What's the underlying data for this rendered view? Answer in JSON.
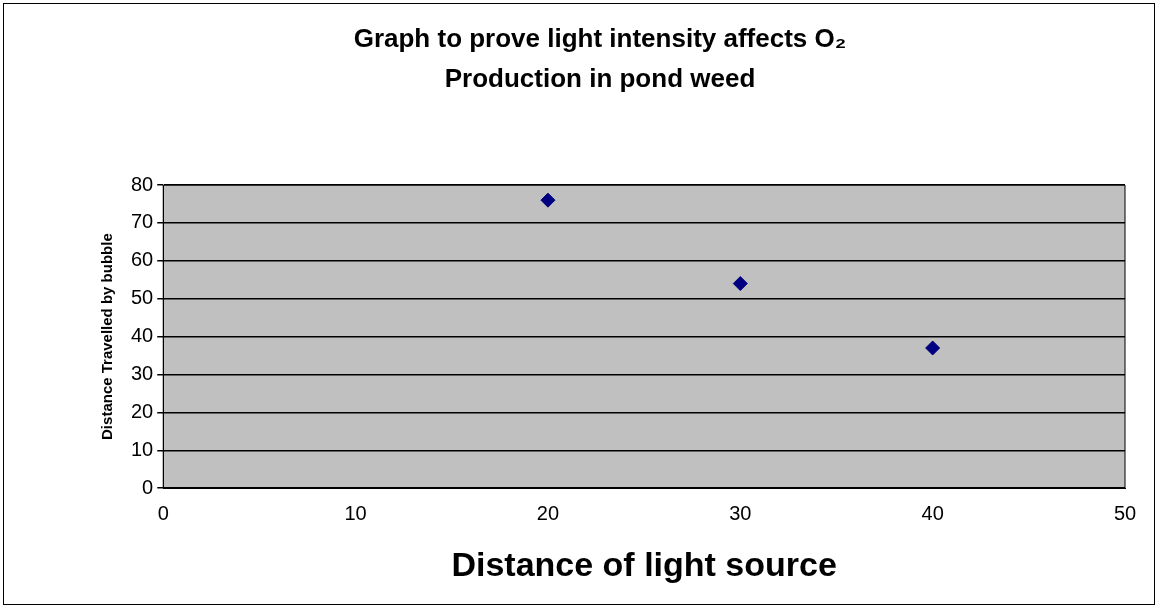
{
  "chart_data": {
    "type": "scatter",
    "title": "Graph to prove light intensity affects O₂ Production in pond weed",
    "xlabel": "Distance of light source",
    "ylabel": "Distance Travelled by bubble",
    "x": [
      20,
      30,
      40
    ],
    "series": [
      {
        "color": "#000080",
        "values": [
          76,
          54,
          37
        ]
      }
    ],
    "xlim": [
      0,
      50
    ],
    "xticks": [
      0,
      10,
      20,
      30,
      40,
      50
    ],
    "ylim": [
      0,
      80
    ],
    "yticks": [
      0,
      10,
      20,
      30,
      40,
      50,
      60,
      70,
      80
    ],
    "grid": "y",
    "legend": false,
    "marker": "diamond"
  }
}
